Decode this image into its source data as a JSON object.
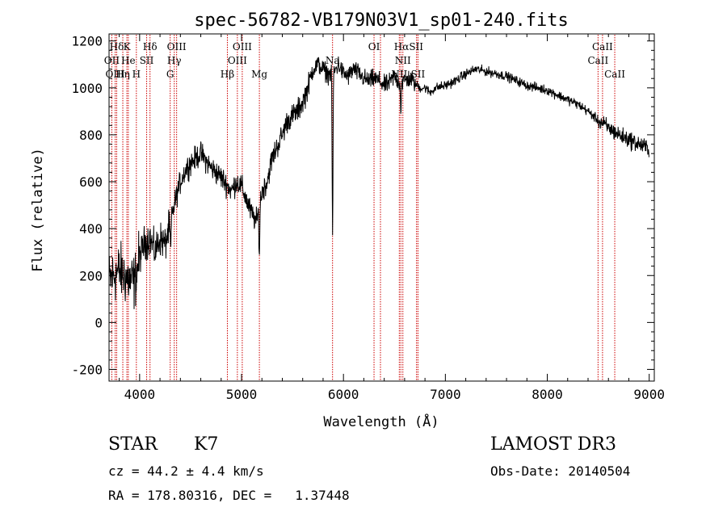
{
  "chart_data": {
    "type": "line",
    "title": "spec-56782-VB179N03V1_sp01-240.fits",
    "xlabel": "Wavelength (Å)",
    "ylabel": "Flux (relative)",
    "xlim": [
      3700,
      9050
    ],
    "ylim": [
      -250,
      1230
    ],
    "xticks": [
      4000,
      5000,
      6000,
      7000,
      8000,
      9000
    ],
    "yticks": [
      -200,
      0,
      200,
      400,
      600,
      800,
      1000,
      1200
    ],
    "xtick_labels": [
      "4000",
      "5000",
      "6000",
      "7000",
      "8000",
      "9000"
    ],
    "ytick_labels": [
      "-200",
      "0",
      "200",
      "400",
      "600",
      "800",
      "1000",
      "1200"
    ],
    "grid": false,
    "continuum": {
      "x": [
        3700,
        3750,
        3800,
        3850,
        3900,
        3950,
        4000,
        4050,
        4100,
        4150,
        4200,
        4250,
        4300,
        4350,
        4400,
        4450,
        4500,
        4550,
        4600,
        4650,
        4700,
        4750,
        4800,
        4850,
        4900,
        4950,
        5000,
        5050,
        5100,
        5150,
        5200,
        5250,
        5300,
        5350,
        5400,
        5450,
        5500,
        5550,
        5600,
        5650,
        5700,
        5750,
        5800,
        5850,
        5900,
        5950,
        6000,
        6050,
        6100,
        6150,
        6200,
        6250,
        6300,
        6350,
        6400,
        6450,
        6500,
        6550,
        6600,
        6650,
        6700,
        6750,
        6800,
        6850,
        6900,
        7000,
        7100,
        7200,
        7300,
        7400,
        7500,
        7600,
        7700,
        7800,
        7900,
        8000,
        8100,
        8200,
        8300,
        8400,
        8500,
        8600,
        8700,
        8800,
        8900,
        9000
      ],
      "y": [
        180,
        200,
        220,
        200,
        180,
        170,
        280,
        340,
        360,
        300,
        360,
        330,
        420,
        520,
        600,
        650,
        680,
        700,
        720,
        690,
        660,
        640,
        620,
        590,
        560,
        600,
        580,
        520,
        460,
        430,
        560,
        600,
        700,
        750,
        800,
        860,
        880,
        900,
        940,
        1000,
        1080,
        1100,
        1080,
        1060,
        1060,
        1100,
        1060,
        1050,
        1080,
        1060,
        1040,
        1030,
        1040,
        1030,
        1010,
        1020,
        1050,
        1020,
        1030,
        1040,
        1020,
        1000,
        1000,
        980,
        1000,
        1010,
        1030,
        1060,
        1080,
        1070,
        1060,
        1050,
        1030,
        1010,
        1000,
        990,
        970,
        950,
        930,
        900,
        860,
        830,
        800,
        780,
        760,
        740
      ]
    },
    "noise_amplitude": [
      {
        "from": 3700,
        "to": 4000,
        "amp": 180
      },
      {
        "from": 4000,
        "to": 4300,
        "amp": 110
      },
      {
        "from": 4300,
        "to": 5700,
        "amp": 75
      },
      {
        "from": 5700,
        "to": 6700,
        "amp": 60
      },
      {
        "from": 6700,
        "to": 8500,
        "amp": 30
      },
      {
        "from": 8500,
        "to": 9000,
        "amp": 55
      }
    ],
    "absorption_dips": [
      {
        "x": 5893,
        "depth": 680,
        "width": 6
      },
      {
        "x": 5175,
        "depth": 200,
        "width": 6
      },
      {
        "x": 6563,
        "depth": 120,
        "width": 5
      },
      {
        "x": 4305,
        "depth": 120,
        "width": 6
      }
    ],
    "lines": [
      {
        "label": "Hδ",
        "x": 3775,
        "row": 0
      },
      {
        "label": "K",
        "x": 3875,
        "row": 0
      },
      {
        "label": "Hδ",
        "x": 4102,
        "row": 0
      },
      {
        "label": "OIII",
        "x": 4363,
        "row": 0
      },
      {
        "label": "OIII",
        "x": 5007,
        "row": 0
      },
      {
        "label": "OI",
        "x": 6300,
        "row": 0
      },
      {
        "label": "HαSII",
        "x": 6640,
        "row": 0
      },
      {
        "label": "CaII",
        "x": 8542,
        "row": 0
      },
      {
        "label": "OII",
        "x": 3727,
        "row": 1
      },
      {
        "label": "He",
        "x": 3889,
        "row": 1
      },
      {
        "label": "SII",
        "x": 4069,
        "row": 1
      },
      {
        "label": "Hγ",
        "x": 4340,
        "row": 1
      },
      {
        "label": "OIII",
        "x": 4959,
        "row": 1
      },
      {
        "label": "Na",
        "x": 5893,
        "row": 1
      },
      {
        "label": "NII",
        "x": 6583,
        "row": 1
      },
      {
        "label": "CaII",
        "x": 8498,
        "row": 1
      },
      {
        "label": "OIII",
        "x": 3760,
        "row": 2
      },
      {
        "label": "Hη",
        "x": 3835,
        "row": 2
      },
      {
        "label": "H",
        "x": 3968,
        "row": 2
      },
      {
        "label": "G",
        "x": 4300,
        "row": 2
      },
      {
        "label": "Hβ",
        "x": 4861,
        "row": 2
      },
      {
        "label": "Mg",
        "x": 5175,
        "row": 2
      },
      {
        "label": "NII",
        "x": 6548,
        "row": 2
      },
      {
        "label": "SII",
        "x": 6731,
        "row": 2
      },
      {
        "label": "CaII",
        "x": 8662,
        "row": 2
      }
    ],
    "line_markers_x": [
      3727,
      3760,
      3775,
      3835,
      3875,
      3889,
      3968,
      4069,
      4102,
      4300,
      4340,
      4363,
      4861,
      4959,
      5007,
      5175,
      5893,
      6300,
      6363,
      6548,
      6563,
      6583,
      6717,
      6731,
      8498,
      8542,
      8662
    ]
  },
  "info": {
    "object_class": "STAR",
    "subclass": "K7",
    "redshift": "cz = 44.2 ± 4.4 km/s",
    "coords": "RA = 178.80316, DEC =   1.37448",
    "survey": "LAMOST DR3",
    "obs_date": "Obs-Date: 20140504"
  },
  "colors": {
    "line_marker": "#cc0000",
    "spectrum": "#000000"
  }
}
